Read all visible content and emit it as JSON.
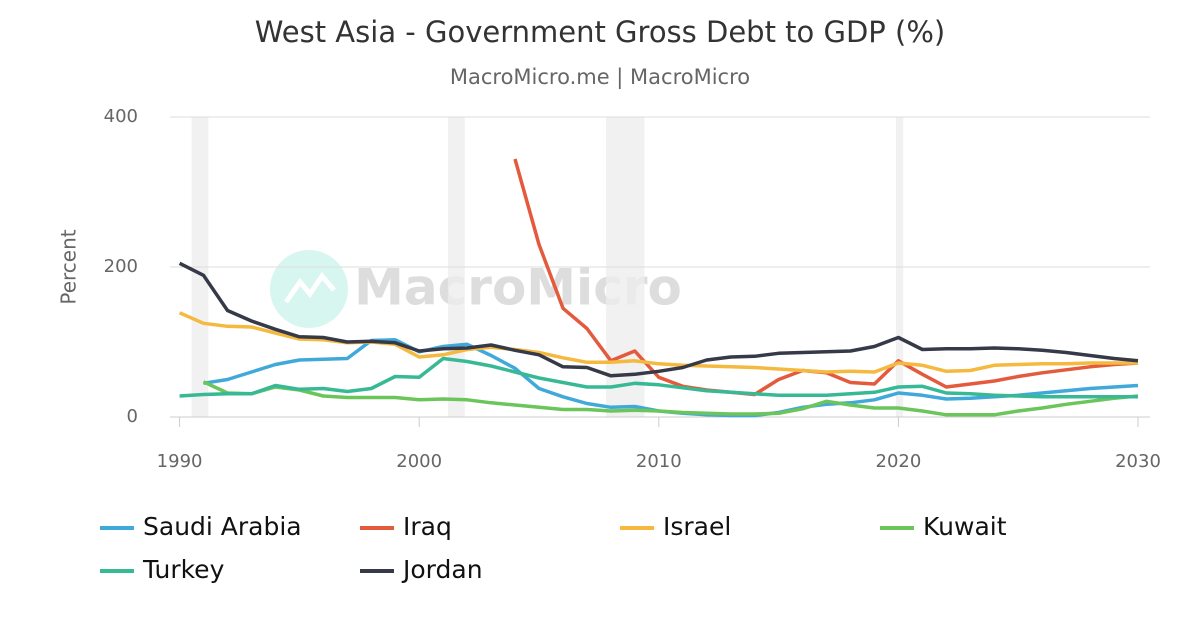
{
  "chart_data": {
    "type": "line",
    "title": "West Asia - Government Gross Debt to GDP (%)",
    "subtitle": "MacroMicro.me | MacroMicro",
    "watermark": "MacroMicro",
    "y_label": "Percent",
    "x": [
      1990,
      1991,
      1992,
      1993,
      1994,
      1995,
      1996,
      1997,
      1998,
      1999,
      2000,
      2001,
      2002,
      2003,
      2004,
      2005,
      2006,
      2007,
      2008,
      2009,
      2010,
      2011,
      2012,
      2013,
      2014,
      2015,
      2016,
      2017,
      2018,
      2019,
      2020,
      2021,
      2022,
      2023,
      2024,
      2025,
      2026,
      2027,
      2028,
      2029,
      2030
    ],
    "xlim": [
      1989.6,
      2030.5
    ],
    "xticks": [
      1990,
      2000,
      2010,
      2020,
      2030
    ],
    "ylim": [
      0,
      400
    ],
    "yticks": [
      0,
      200,
      400
    ],
    "grid": true,
    "shaded_ranges": [
      [
        1990.5,
        1991.2
      ],
      [
        2001.2,
        2001.9
      ],
      [
        2007.8,
        2009.4
      ],
      [
        2019.9,
        2020.2
      ]
    ],
    "series": [
      {
        "name": "Saudi Arabia",
        "color": "#41a9da",
        "values": [
          null,
          45,
          50,
          60,
          70,
          76,
          77,
          78,
          102,
          103,
          87,
          94,
          97,
          82,
          65,
          38,
          27,
          18,
          13,
          14,
          8,
          5,
          3,
          2,
          2,
          6,
          13,
          17,
          19,
          23,
          32,
          29,
          24,
          25,
          27,
          29,
          32,
          35,
          38,
          40,
          42
        ]
      },
      {
        "name": "Iraq",
        "color": "#e45a3c",
        "values": [
          null,
          null,
          null,
          null,
          null,
          null,
          null,
          null,
          null,
          null,
          null,
          null,
          null,
          null,
          344,
          230,
          145,
          118,
          75,
          88,
          53,
          41,
          36,
          33,
          30,
          50,
          62,
          59,
          46,
          44,
          75,
          57,
          40,
          44,
          48,
          54,
          59,
          63,
          67,
          70,
          72
        ]
      },
      {
        "name": "Israel",
        "color": "#f4b93e",
        "values": [
          139,
          125,
          121,
          120,
          112,
          104,
          103,
          99,
          100,
          97,
          80,
          83,
          90,
          93,
          90,
          86,
          79,
          73,
          73,
          75,
          71,
          69,
          68,
          67,
          66,
          64,
          62,
          60,
          61,
          60,
          72,
          69,
          61,
          62,
          69,
          70,
          71,
          71,
          72,
          72,
          72
        ]
      },
      {
        "name": "Kuwait",
        "color": "#6cc55a",
        "values": [
          null,
          47,
          32,
          31,
          40,
          36,
          28,
          26,
          26,
          26,
          23,
          24,
          23,
          19,
          16,
          13,
          10,
          10,
          8,
          9,
          8,
          6,
          5,
          4,
          4,
          5,
          11,
          21,
          16,
          12,
          12,
          8,
          3,
          3,
          3,
          8,
          12,
          17,
          21,
          25,
          28
        ]
      },
      {
        "name": "Turkey",
        "color": "#37b996",
        "values": [
          28,
          30,
          31,
          31,
          42,
          37,
          38,
          34,
          38,
          54,
          53,
          78,
          74,
          68,
          60,
          52,
          46,
          40,
          40,
          45,
          43,
          39,
          35,
          33,
          31,
          29,
          29,
          29,
          31,
          33,
          40,
          41,
          32,
          31,
          29,
          28,
          27,
          27,
          27,
          27,
          27
        ]
      },
      {
        "name": "Jordan",
        "color": "#363a48",
        "values": [
          205,
          189,
          142,
          128,
          117,
          107,
          106,
          100,
          101,
          99,
          88,
          91,
          92,
          96,
          89,
          83,
          67,
          66,
          55,
          57,
          61,
          66,
          76,
          80,
          81,
          85,
          86,
          87,
          88,
          94,
          106,
          90,
          91,
          91,
          92,
          91,
          89,
          86,
          82,
          78,
          75
        ]
      }
    ]
  }
}
